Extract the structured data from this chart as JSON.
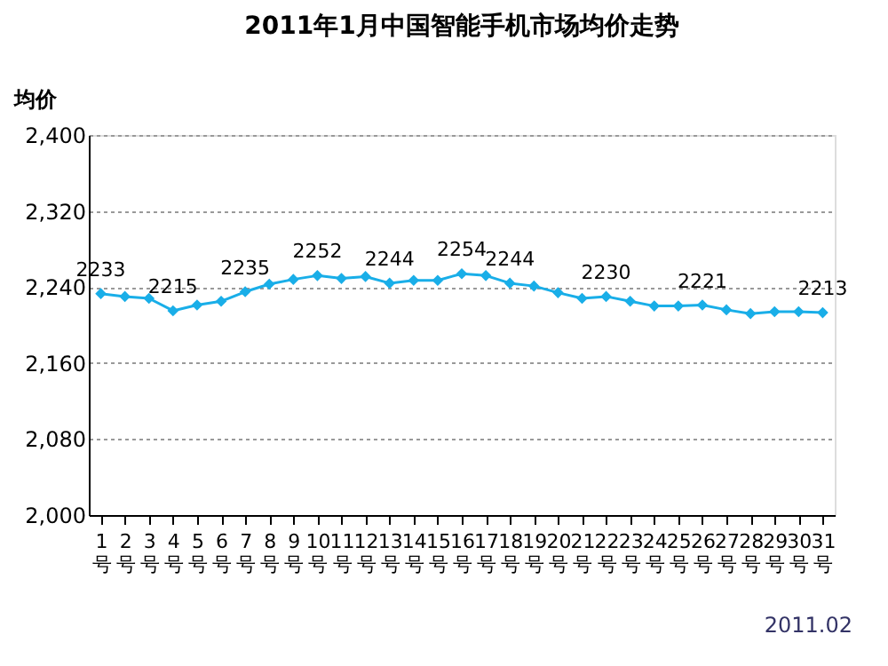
{
  "chart_data": {
    "type": "line",
    "title": "2011年1月中国智能手机市场均价走势",
    "ylabel": "均价",
    "categories": [
      "1号",
      "2号",
      "3号",
      "4号",
      "5号",
      "6号",
      "7号",
      "8号",
      "9号",
      "10号",
      "11号",
      "12号",
      "13号",
      "14号",
      "15号",
      "16号",
      "17号",
      "18号",
      "19号",
      "20号",
      "21号",
      "22号",
      "23号",
      "24号",
      "25号",
      "26号",
      "27号",
      "28号",
      "29号",
      "30号",
      "31号"
    ],
    "series": [
      {
        "color": "#19aee8",
        "values": [
          2233,
          2230,
          2228,
          2215,
          2221,
          2225,
          2235,
          2243,
          2248,
          2252,
          2249,
          2251,
          2244,
          2247,
          2247,
          2254,
          2252,
          2244,
          2241,
          2234,
          2228,
          2230,
          2225,
          2220,
          2220,
          2221,
          2216,
          2212,
          2214,
          2214,
          2213
        ],
        "value_labels": [
          "2233",
          null,
          null,
          "2215",
          null,
          null,
          "2235",
          null,
          null,
          "2252",
          null,
          null,
          "2244",
          null,
          null,
          "2254",
          null,
          "2244",
          null,
          null,
          null,
          "2230",
          null,
          null,
          null,
          "2221",
          null,
          null,
          null,
          null,
          "2213"
        ]
      }
    ],
    "ylim": [
      2000,
      2400
    ],
    "yticks": [
      {
        "value": 2000,
        "label": "2,000"
      },
      {
        "value": 2080,
        "label": "2,080"
      },
      {
        "value": 2160,
        "label": "2,160"
      },
      {
        "value": 2240,
        "label": "2,240"
      },
      {
        "value": 2320,
        "label": "2,320"
      },
      {
        "value": 2400,
        "label": "2,400"
      }
    ],
    "grid": "y",
    "marker": "diamond",
    "line_style": "solid",
    "annotations": [
      "2011.02"
    ]
  }
}
